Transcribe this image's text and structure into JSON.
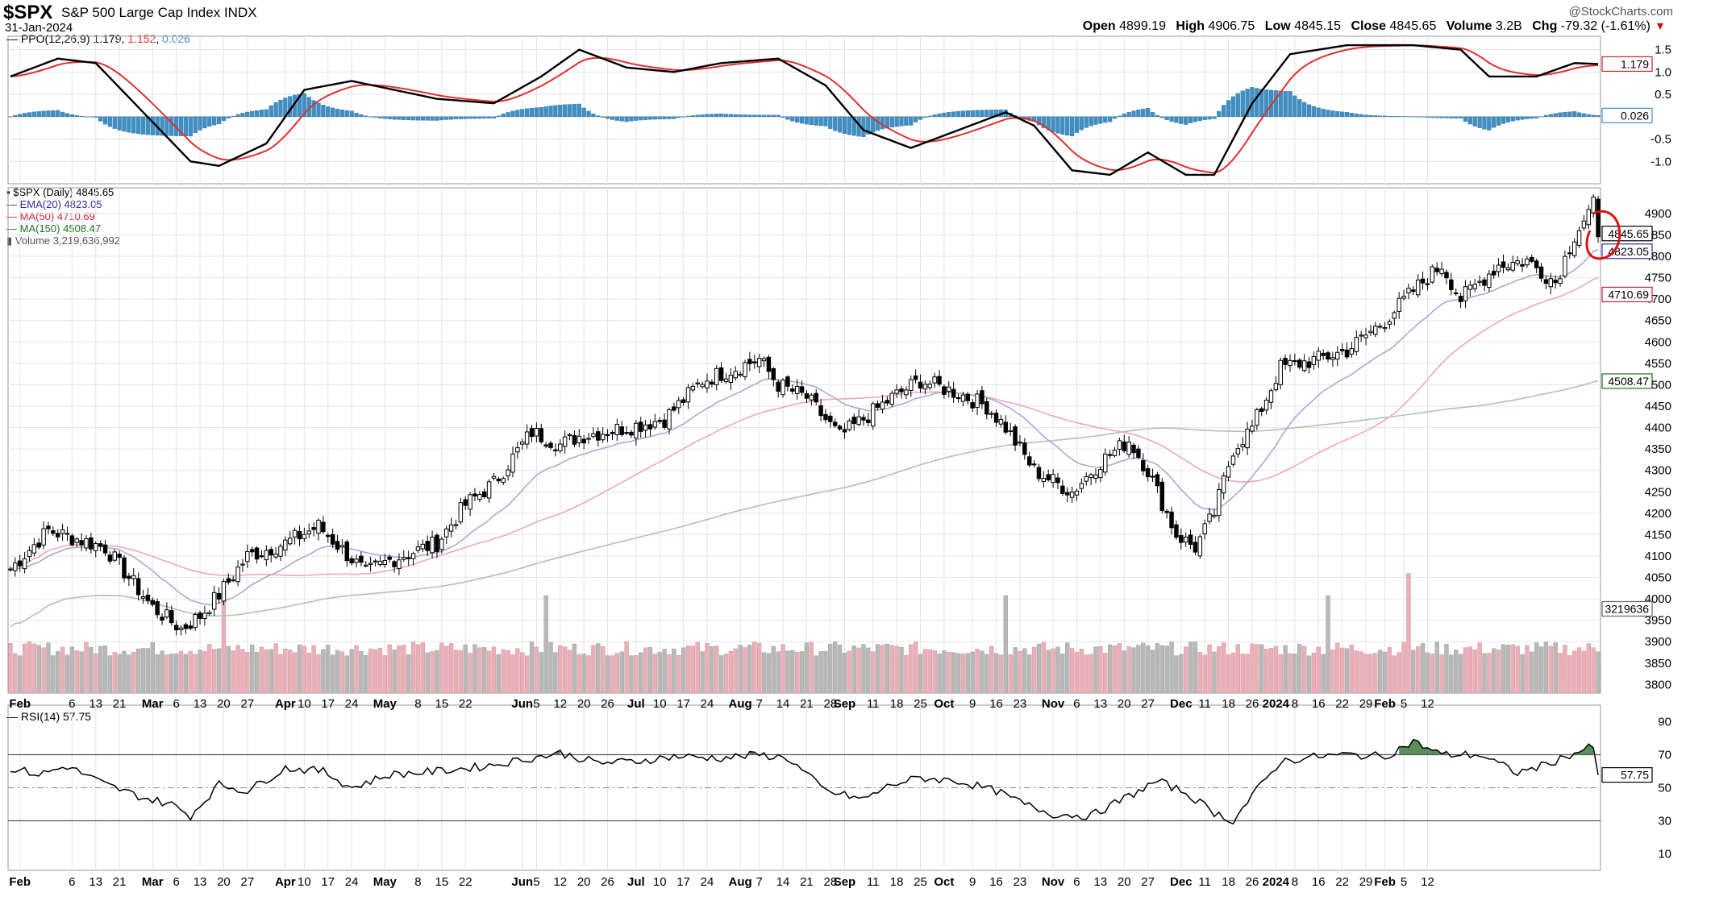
{
  "header": {
    "symbol": "$SPX",
    "name": "S&P 500 Large Cap Index",
    "exchange": "INDX",
    "date": "31-Jan-2024",
    "brand": "@StockCharts.com",
    "open_label": "Open",
    "open": "4899.19",
    "high_label": "High",
    "high": "4906.75",
    "low_label": "Low",
    "low": "4845.15",
    "close_label": "Close",
    "close": "4845.65",
    "volume_label": "Volume",
    "volume": "3.2B",
    "chg_label": "Chg",
    "chg": "-79.32 (-1.61%)"
  },
  "colors": {
    "price_up": "#ffffff",
    "price_down": "#000000",
    "candle_outline": "#000000",
    "ema20": "#a9a9d8",
    "ma50": "#eea8b8",
    "ma150": "#a8c8a8",
    "vol_up": "#eab0b8",
    "vol_down": "#b8b8b8",
    "ppo_line": "#000000",
    "ppo_signal": "#e03030",
    "ppo_hist": "#3f8fc2",
    "rsi_line": "#000000",
    "rsi_fill": "#3d7a3d",
    "annotation": "#e01010"
  },
  "chart_data": {
    "type": "candlestick",
    "title": "$SPX S&P 500 Large Cap Index INDX",
    "price_panel": {
      "label": "$SPX (Daily) 4845.65",
      "ylim": [
        3780,
        4960
      ],
      "y_ticks": [
        3800,
        3850,
        3900,
        3950,
        4000,
        4050,
        4100,
        4150,
        4200,
        4250,
        4300,
        4350,
        4400,
        4450,
        4500,
        4550,
        4600,
        4650,
        4700,
        4750,
        4800,
        4850,
        4900
      ],
      "last_values": {
        "close": "4845.65",
        "ema20": "4823.05",
        "ma50": "4710.69",
        "ma150": "4508.47",
        "volume": "3219636"
      },
      "close_anchors": [
        [
          0,
          4070
        ],
        [
          8,
          4160
        ],
        [
          20,
          4120
        ],
        [
          30,
          3980
        ],
        [
          36,
          3930
        ],
        [
          40,
          3960
        ],
        [
          44,
          4010
        ],
        [
          50,
          4100
        ],
        [
          58,
          4130
        ],
        [
          65,
          4170
        ],
        [
          75,
          4060
        ],
        [
          80,
          4090
        ],
        [
          90,
          4130
        ],
        [
          96,
          4220
        ],
        [
          102,
          4270
        ],
        [
          110,
          4390
        ],
        [
          116,
          4360
        ],
        [
          120,
          4380
        ],
        [
          130,
          4400
        ],
        [
          138,
          4420
        ],
        [
          146,
          4510
        ],
        [
          158,
          4560
        ],
        [
          162,
          4500
        ],
        [
          168,
          4470
        ],
        [
          175,
          4380
        ],
        [
          180,
          4420
        ],
        [
          186,
          4470
        ],
        [
          192,
          4510
        ],
        [
          200,
          4480
        ],
        [
          206,
          4450
        ],
        [
          210,
          4400
        ],
        [
          216,
          4300
        ],
        [
          224,
          4250
        ],
        [
          230,
          4320
        ],
        [
          236,
          4370
        ],
        [
          240,
          4300
        ],
        [
          246,
          4150
        ],
        [
          250,
          4120
        ],
        [
          254,
          4200
        ],
        [
          258,
          4350
        ],
        [
          262,
          4400
        ],
        [
          268,
          4540
        ],
        [
          276,
          4560
        ],
        [
          282,
          4580
        ],
        [
          290,
          4650
        ],
        [
          296,
          4720
        ],
        [
          302,
          4780
        ],
        [
          306,
          4700
        ],
        [
          314,
          4780
        ],
        [
          320,
          4790
        ],
        [
          326,
          4740
        ],
        [
          330,
          4850
        ],
        [
          334,
          4920
        ],
        [
          335,
          4846
        ]
      ],
      "legend": [
        {
          "name": "$SPX (Daily)",
          "value": "4845.65"
        },
        {
          "name": "EMA(20)",
          "value": "4823.05"
        },
        {
          "name": "MA(50)",
          "value": "4710.69"
        },
        {
          "name": "MA(150)",
          "value": "4508.47"
        },
        {
          "name": "Volume",
          "value": "3,219,636,992"
        }
      ]
    },
    "volume": {
      "base": 3250000000,
      "spikes": [
        {
          "bar": 45,
          "value": "high"
        },
        {
          "bar": 113,
          "value": "high"
        },
        {
          "bar": 210,
          "value": "high"
        },
        {
          "bar": 295,
          "value": "very high"
        },
        {
          "bar": 278,
          "value": "high"
        }
      ]
    },
    "ppo_panel": {
      "label": "PPO(12,26,9)",
      "ppo": "1.179",
      "signal": "1.152",
      "histogram": "0.026",
      "ylim": [
        -1.5,
        1.8
      ],
      "y_ticks": [
        1.5,
        1.0,
        0.5,
        -0.5,
        -1.0
      ],
      "anchors": [
        [
          0,
          0.9
        ],
        [
          10,
          1.3
        ],
        [
          18,
          1.2
        ],
        [
          28,
          0.1
        ],
        [
          38,
          -1.0
        ],
        [
          44,
          -1.1
        ],
        [
          54,
          -0.6
        ],
        [
          62,
          0.6
        ],
        [
          72,
          0.8
        ],
        [
          90,
          0.4
        ],
        [
          102,
          0.3
        ],
        [
          112,
          0.9
        ],
        [
          120,
          1.5
        ],
        [
          130,
          1.1
        ],
        [
          140,
          1.0
        ],
        [
          150,
          1.2
        ],
        [
          162,
          1.3
        ],
        [
          172,
          0.7
        ],
        [
          180,
          -0.3
        ],
        [
          190,
          -0.7
        ],
        [
          200,
          -0.3
        ],
        [
          210,
          0.1
        ],
        [
          216,
          -0.2
        ],
        [
          224,
          -1.2
        ],
        [
          232,
          -1.3
        ],
        [
          240,
          -0.8
        ],
        [
          248,
          -1.3
        ],
        [
          254,
          -1.3
        ],
        [
          262,
          0.3
        ],
        [
          270,
          1.4
        ],
        [
          282,
          1.6
        ],
        [
          296,
          1.6
        ],
        [
          306,
          1.5
        ],
        [
          312,
          0.9
        ],
        [
          322,
          0.9
        ],
        [
          330,
          1.2
        ],
        [
          335,
          1.179
        ]
      ]
    },
    "rsi_panel": {
      "label": "RSI(14)",
      "value": "57.75",
      "ylim": [
        0,
        100
      ],
      "y_ticks": [
        90,
        70,
        50,
        30,
        10
      ],
      "overbought": 70,
      "oversold": 30,
      "midline": 50,
      "anchors": [
        [
          0,
          62
        ],
        [
          6,
          58
        ],
        [
          12,
          63
        ],
        [
          20,
          52
        ],
        [
          28,
          44
        ],
        [
          34,
          40
        ],
        [
          38,
          33
        ],
        [
          44,
          52
        ],
        [
          50,
          48
        ],
        [
          58,
          62
        ],
        [
          66,
          60
        ],
        [
          72,
          50
        ],
        [
          80,
          58
        ],
        [
          90,
          60
        ],
        [
          100,
          63
        ],
        [
          110,
          68
        ],
        [
          116,
          71
        ],
        [
          124,
          65
        ],
        [
          132,
          66
        ],
        [
          140,
          69
        ],
        [
          150,
          68
        ],
        [
          158,
          70
        ],
        [
          164,
          68
        ],
        [
          172,
          48
        ],
        [
          180,
          43
        ],
        [
          186,
          52
        ],
        [
          192,
          56
        ],
        [
          200,
          54
        ],
        [
          208,
          48
        ],
        [
          214,
          40
        ],
        [
          220,
          34
        ],
        [
          228,
          33
        ],
        [
          236,
          45
        ],
        [
          242,
          54
        ],
        [
          248,
          47
        ],
        [
          254,
          35
        ],
        [
          258,
          30
        ],
        [
          262,
          45
        ],
        [
          268,
          66
        ],
        [
          276,
          69
        ],
        [
          282,
          70
        ],
        [
          290,
          69
        ],
        [
          296,
          78
        ],
        [
          302,
          70
        ],
        [
          310,
          70
        ],
        [
          318,
          59
        ],
        [
          324,
          64
        ],
        [
          330,
          71
        ],
        [
          334,
          75
        ],
        [
          335,
          57.75
        ]
      ]
    },
    "x_axis": {
      "labels": [
        {
          "bar": 2,
          "text": "Feb",
          "bold": true
        },
        {
          "bar": 13,
          "text": "6"
        },
        {
          "bar": 18,
          "text": "13"
        },
        {
          "bar": 23,
          "text": "21"
        },
        {
          "bar": 30,
          "text": "Mar",
          "bold": true
        },
        {
          "bar": 35,
          "text": "6"
        },
        {
          "bar": 40,
          "text": "13"
        },
        {
          "bar": 45,
          "text": "20"
        },
        {
          "bar": 50,
          "text": "27"
        },
        {
          "bar": 58,
          "text": "Apr",
          "bold": true
        },
        {
          "bar": 62,
          "text": "10"
        },
        {
          "bar": 67,
          "text": "17"
        },
        {
          "bar": 72,
          "text": "24"
        },
        {
          "bar": 79,
          "text": "May",
          "bold": true
        },
        {
          "bar": 86,
          "text": "8"
        },
        {
          "bar": 91,
          "text": "15"
        },
        {
          "bar": 96,
          "text": "22"
        },
        {
          "bar": 108,
          "text": "Jun",
          "bold": true
        },
        {
          "bar": 111,
          "text": "5"
        },
        {
          "bar": 116,
          "text": "12"
        },
        {
          "bar": 121,
          "text": "20"
        },
        {
          "bar": 126,
          "text": "26"
        },
        {
          "bar": 132,
          "text": "Jul",
          "bold": true
        },
        {
          "bar": 137,
          "text": "10"
        },
        {
          "bar": 142,
          "text": "17"
        },
        {
          "bar": 147,
          "text": "24"
        },
        {
          "bar": 154,
          "text": "Aug",
          "bold": true
        },
        {
          "bar": 158,
          "text": "7"
        },
        {
          "bar": 163,
          "text": "14"
        },
        {
          "bar": 168,
          "text": "21"
        },
        {
          "bar": 173,
          "text": "28"
        },
        {
          "bar": 176,
          "text": "Sep",
          "bold": true
        },
        {
          "bar": 182,
          "text": "11"
        },
        {
          "bar": 187,
          "text": "18"
        },
        {
          "bar": 192,
          "text": "25"
        },
        {
          "bar": 197,
          "text": "Oct",
          "bold": true
        },
        {
          "bar": 203,
          "text": "9"
        },
        {
          "bar": 208,
          "text": "16"
        },
        {
          "bar": 213,
          "text": "23"
        },
        {
          "bar": 220,
          "text": "Nov",
          "bold": true
        },
        {
          "bar": 225,
          "text": "6"
        },
        {
          "bar": 230,
          "text": "13"
        },
        {
          "bar": 235,
          "text": "20"
        },
        {
          "bar": 240,
          "text": "27"
        },
        {
          "bar": 247,
          "text": "Dec",
          "bold": true
        },
        {
          "bar": 252,
          "text": "11"
        },
        {
          "bar": 257,
          "text": "18"
        },
        {
          "bar": 262,
          "text": "26"
        },
        {
          "bar": 267,
          "text": "2024",
          "bold": true
        },
        {
          "bar": 271,
          "text": "8"
        },
        {
          "bar": 276,
          "text": "16"
        },
        {
          "bar": 281,
          "text": "22"
        },
        {
          "bar": 286,
          "text": "29"
        },
        {
          "bar": 290,
          "text": "Feb",
          "bold": true
        },
        {
          "bar": 294,
          "text": "5"
        },
        {
          "bar": 299,
          "text": "12"
        }
      ]
    }
  }
}
